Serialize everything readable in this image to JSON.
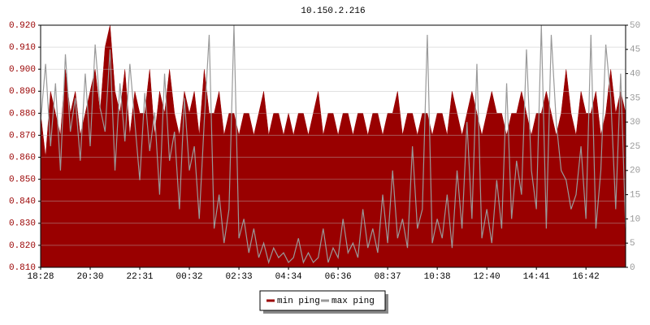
{
  "chart_data": {
    "type": "area-line",
    "title": "10.150.2.216",
    "categories": [
      "18:28",
      null,
      null,
      null,
      null,
      null,
      null,
      null,
      null,
      null,
      "20:30",
      null,
      null,
      null,
      null,
      null,
      null,
      null,
      null,
      null,
      "22:31",
      null,
      null,
      null,
      null,
      null,
      null,
      null,
      null,
      null,
      "00:32",
      null,
      null,
      null,
      null,
      null,
      null,
      null,
      null,
      null,
      "02:33",
      null,
      null,
      null,
      null,
      null,
      null,
      null,
      null,
      null,
      "04:34",
      null,
      null,
      null,
      null,
      null,
      null,
      null,
      null,
      null,
      "06:36",
      null,
      null,
      null,
      null,
      null,
      null,
      null,
      null,
      null,
      "08:37",
      null,
      null,
      null,
      null,
      null,
      null,
      null,
      null,
      null,
      "10:38",
      null,
      null,
      null,
      null,
      null,
      null,
      null,
      null,
      null,
      "12:40",
      null,
      null,
      null,
      null,
      null,
      null,
      null,
      null,
      null,
      "14:41",
      null,
      null,
      null,
      null,
      null,
      null,
      null,
      null,
      null,
      "16:42",
      null,
      null,
      null,
      null,
      null,
      null,
      null,
      null
    ],
    "series": [
      {
        "name": "min ping",
        "color": "#990000",
        "values": [
          0.88,
          0.86,
          0.89,
          0.88,
          0.87,
          0.9,
          0.88,
          0.89,
          0.87,
          0.88,
          0.89,
          0.9,
          0.88,
          0.91,
          0.92,
          0.89,
          0.88,
          0.9,
          0.87,
          0.89,
          0.88,
          0.88,
          0.9,
          0.87,
          0.89,
          0.88,
          0.9,
          0.88,
          0.87,
          0.89,
          0.88,
          0.89,
          0.87,
          0.9,
          0.88,
          0.88,
          0.89,
          0.87,
          0.88,
          0.88,
          0.87,
          0.88,
          0.88,
          0.87,
          0.88,
          0.89,
          0.87,
          0.88,
          0.88,
          0.87,
          0.88,
          0.87,
          0.88,
          0.88,
          0.87,
          0.88,
          0.89,
          0.87,
          0.88,
          0.88,
          0.87,
          0.88,
          0.88,
          0.87,
          0.88,
          0.88,
          0.87,
          0.88,
          0.88,
          0.87,
          0.88,
          0.88,
          0.89,
          0.87,
          0.88,
          0.88,
          0.87,
          0.88,
          0.88,
          0.87,
          0.88,
          0.88,
          0.87,
          0.89,
          0.88,
          0.87,
          0.88,
          0.89,
          0.88,
          0.87,
          0.88,
          0.89,
          0.88,
          0.88,
          0.87,
          0.88,
          0.88,
          0.89,
          0.88,
          0.87,
          0.88,
          0.88,
          0.89,
          0.88,
          0.87,
          0.88,
          0.9,
          0.88,
          0.87,
          0.89,
          0.88,
          0.88,
          0.89,
          0.87,
          0.88,
          0.9,
          0.88,
          0.89,
          0.88
        ]
      },
      {
        "name": "max ping",
        "color": "#999999",
        "axis": "y2",
        "values": [
          30,
          42,
          25,
          38,
          20,
          44,
          28,
          35,
          22,
          40,
          25,
          46,
          33,
          28,
          45,
          20,
          38,
          26,
          42,
          30,
          18,
          36,
          24,
          32,
          15,
          40,
          22,
          28,
          12,
          35,
          20,
          25,
          10,
          30,
          48,
          8,
          15,
          5,
          12,
          50,
          6,
          10,
          3,
          8,
          2,
          5,
          1,
          4,
          2,
          3,
          1,
          2,
          6,
          1,
          3,
          1,
          2,
          8,
          1,
          4,
          2,
          10,
          3,
          5,
          2,
          12,
          4,
          8,
          3,
          15,
          5,
          20,
          6,
          10,
          4,
          25,
          8,
          12,
          48,
          5,
          10,
          6,
          15,
          4,
          20,
          8,
          30,
          10,
          42,
          6,
          12,
          5,
          18,
          8,
          38,
          10,
          22,
          15,
          45,
          20,
          12,
          50,
          8,
          48,
          30,
          20,
          18,
          12,
          15,
          25,
          10,
          48,
          8,
          20,
          46,
          35,
          12,
          40,
          8
        ]
      }
    ],
    "ylim": [
      0.81,
      0.92
    ],
    "yticks": [
      {
        "value": 0.81,
        "label": "0.810"
      },
      {
        "value": 0.82,
        "label": "0.820"
      },
      {
        "value": 0.83,
        "label": "0.830"
      },
      {
        "value": 0.84,
        "label": "0.840"
      },
      {
        "value": 0.85,
        "label": "0.850"
      },
      {
        "value": 0.86,
        "label": "0.860"
      },
      {
        "value": 0.87,
        "label": "0.870"
      },
      {
        "value": 0.88,
        "label": "0.880"
      },
      {
        "value": 0.89,
        "label": "0.890"
      },
      {
        "value": 0.9,
        "label": "0.900"
      },
      {
        "value": 0.91,
        "label": "0.910"
      },
      {
        "value": 0.92,
        "label": "0.920"
      }
    ],
    "y2lim": [
      0,
      50
    ],
    "y2ticks": [
      0,
      5,
      10,
      15,
      20,
      25,
      30,
      35,
      40,
      45,
      50
    ],
    "grid": true
  }
}
